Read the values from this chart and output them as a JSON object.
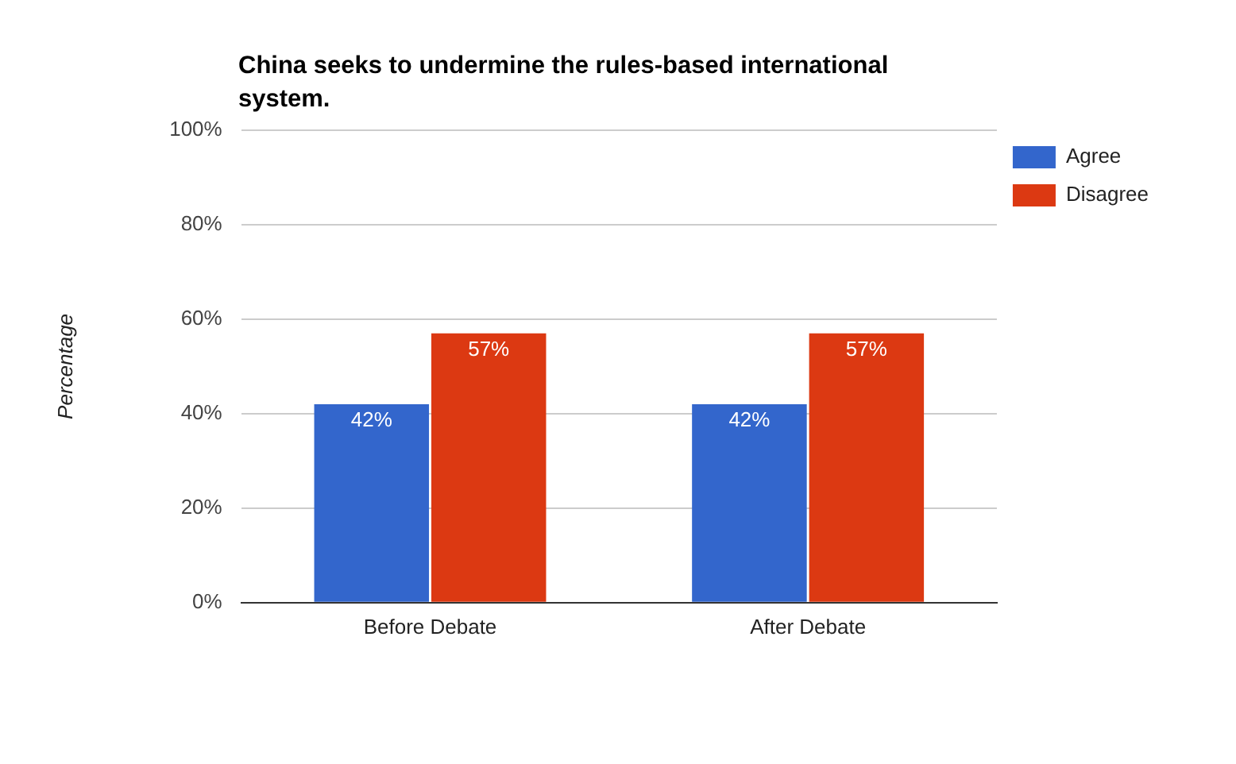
{
  "chart_data": {
    "type": "bar",
    "title": "China seeks to undermine the rules-based international system.",
    "ylabel": "Percentage",
    "categories": [
      "Before Debate",
      "After Debate"
    ],
    "series": [
      {
        "name": "Agree",
        "color": "#3366cc",
        "values": [
          42,
          42
        ],
        "value_labels": [
          "42%",
          "42%"
        ]
      },
      {
        "name": "Disagree",
        "color": "#dc3912",
        "values": [
          57,
          57
        ],
        "value_labels": [
          "57%",
          "57%"
        ]
      }
    ],
    "ylim": [
      0,
      100
    ],
    "yticks": [
      {
        "value": 0,
        "label": "0%"
      },
      {
        "value": 20,
        "label": "20%"
      },
      {
        "value": 40,
        "label": "40%"
      },
      {
        "value": 60,
        "label": "60%"
      },
      {
        "value": 80,
        "label": "80%"
      },
      {
        "value": 100,
        "label": "100%"
      }
    ],
    "grid": "y",
    "legend": "top right"
  }
}
